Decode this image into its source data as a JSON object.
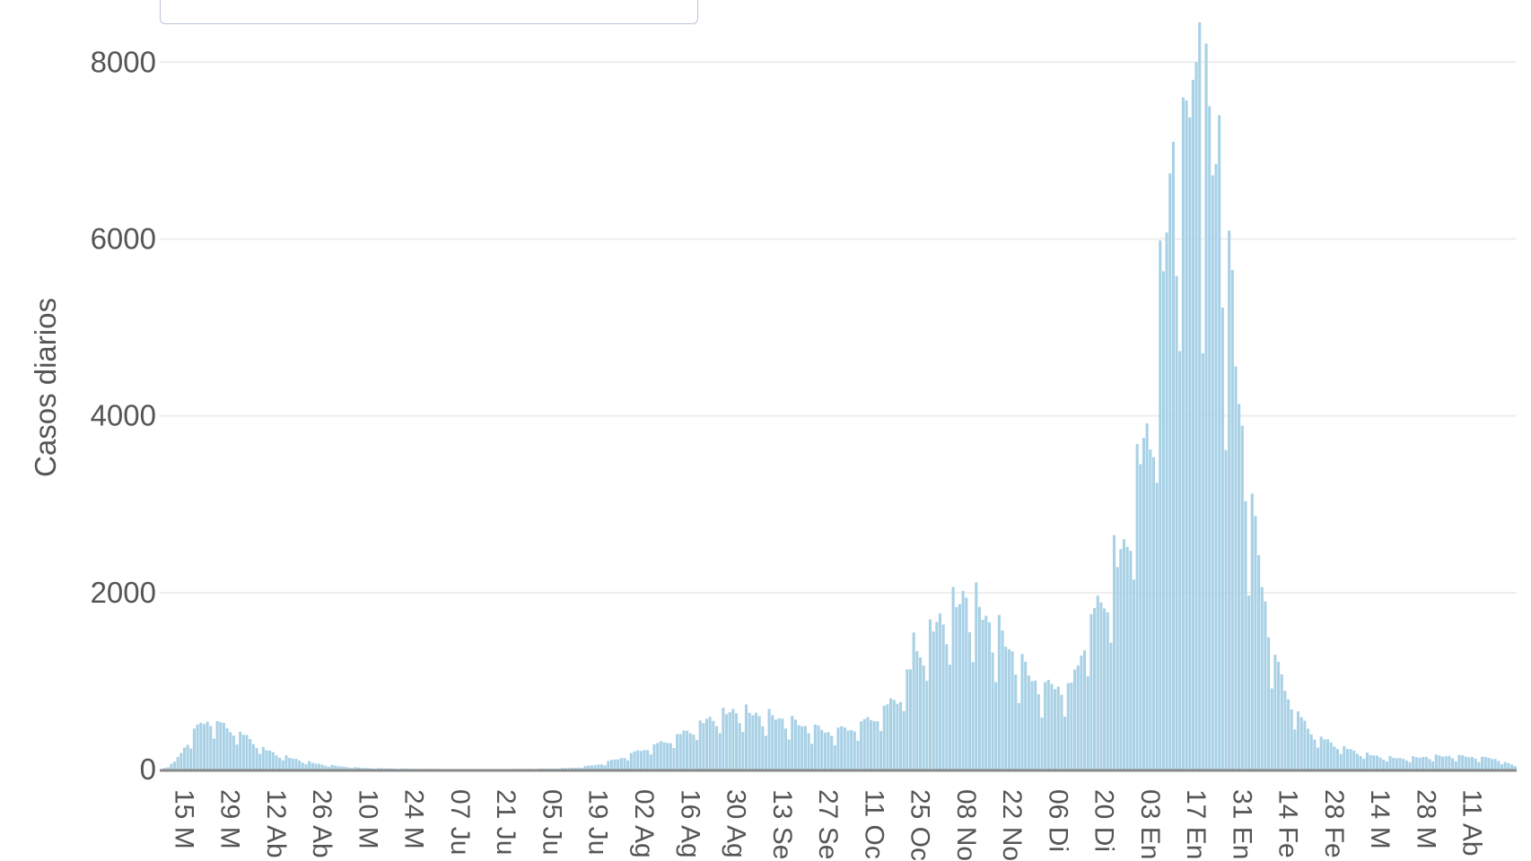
{
  "chart_data": {
    "type": "bar",
    "title": "",
    "ylabel": "Casos diarios",
    "xlabel": "",
    "ylim": [
      0,
      8500
    ],
    "yticks": [
      0,
      2000,
      4000,
      6000,
      8000
    ],
    "bar_color": "#a8d1e6",
    "grid": true,
    "x_start": "2020-03-08",
    "x_end": "2021-04-24",
    "x_tick_labels": [
      {
        "date": "2020-03-15",
        "label": "15 M"
      },
      {
        "date": "2020-03-29",
        "label": "29 M"
      },
      {
        "date": "2020-04-12",
        "label": "12 Ab"
      },
      {
        "date": "2020-04-26",
        "label": "26 Ab"
      },
      {
        "date": "2020-05-10",
        "label": "10 M"
      },
      {
        "date": "2020-05-24",
        "label": "24 M"
      },
      {
        "date": "2020-06-07",
        "label": "07 Ju"
      },
      {
        "date": "2020-06-21",
        "label": "21 Ju"
      },
      {
        "date": "2020-07-05",
        "label": "05 Ju"
      },
      {
        "date": "2020-07-19",
        "label": "19 Ju"
      },
      {
        "date": "2020-08-02",
        "label": "02 Ag"
      },
      {
        "date": "2020-08-16",
        "label": "16 Ag"
      },
      {
        "date": "2020-08-30",
        "label": "30 Ag"
      },
      {
        "date": "2020-09-13",
        "label": "13 Se"
      },
      {
        "date": "2020-09-27",
        "label": "27 Se"
      },
      {
        "date": "2020-10-11",
        "label": "11 Oc"
      },
      {
        "date": "2020-10-25",
        "label": "25 Oc"
      },
      {
        "date": "2020-11-08",
        "label": "08 No"
      },
      {
        "date": "2020-11-22",
        "label": "22 No"
      },
      {
        "date": "2020-12-06",
        "label": "06 Di"
      },
      {
        "date": "2020-12-20",
        "label": "20 Di"
      },
      {
        "date": "2021-01-03",
        "label": "03 En"
      },
      {
        "date": "2021-01-17",
        "label": "17 En"
      },
      {
        "date": "2021-01-31",
        "label": "31 En"
      },
      {
        "date": "2021-02-14",
        "label": "14 Fe"
      },
      {
        "date": "2021-02-28",
        "label": "28 Fe"
      },
      {
        "date": "2021-03-14",
        "label": "14 M"
      },
      {
        "date": "2021-03-28",
        "label": "28 M"
      },
      {
        "date": "2021-04-11",
        "label": "11 Ab"
      }
    ],
    "series_points": [
      [
        "2020-03-08",
        0
      ],
      [
        "2020-03-12",
        80
      ],
      [
        "2020-03-15",
        250
      ],
      [
        "2020-03-18",
        430
      ],
      [
        "2020-03-22",
        560
      ],
      [
        "2020-03-26",
        500
      ],
      [
        "2020-03-29",
        450
      ],
      [
        "2020-04-03",
        360
      ],
      [
        "2020-04-08",
        230
      ],
      [
        "2020-04-12",
        170
      ],
      [
        "2020-04-17",
        120
      ],
      [
        "2020-04-22",
        80
      ],
      [
        "2020-04-26",
        55
      ],
      [
        "2020-05-03",
        30
      ],
      [
        "2020-05-10",
        15
      ],
      [
        "2020-05-24",
        8
      ],
      [
        "2020-06-07",
        5
      ],
      [
        "2020-06-21",
        5
      ],
      [
        "2020-07-05",
        10
      ],
      [
        "2020-07-12",
        20
      ],
      [
        "2020-07-19",
        55
      ],
      [
        "2020-07-26",
        130
      ],
      [
        "2020-08-02",
        230
      ],
      [
        "2020-08-09",
        320
      ],
      [
        "2020-08-16",
        440
      ],
      [
        "2020-08-23",
        580
      ],
      [
        "2020-08-30",
        650
      ],
      [
        "2020-09-06",
        600
      ],
      [
        "2020-09-13",
        560
      ],
      [
        "2020-09-20",
        480
      ],
      [
        "2020-09-27",
        420
      ],
      [
        "2020-10-04",
        460
      ],
      [
        "2020-10-11",
        580
      ],
      [
        "2020-10-18",
        800
      ],
      [
        "2020-10-25",
        1350
      ],
      [
        "2020-11-01",
        1700
      ],
      [
        "2020-11-05",
        1800
      ],
      [
        "2020-11-08",
        1950
      ],
      [
        "2020-11-12",
        1750
      ],
      [
        "2020-11-17",
        1550
      ],
      [
        "2020-11-22",
        1300
      ],
      [
        "2020-11-27",
        1050
      ],
      [
        "2020-12-02",
        900
      ],
      [
        "2020-12-06",
        950
      ],
      [
        "2020-12-10",
        900
      ],
      [
        "2020-12-14",
        1500
      ],
      [
        "2020-12-20",
        1950
      ],
      [
        "2020-12-25",
        2300
      ],
      [
        "2020-12-30",
        3300
      ],
      [
        "2021-01-03",
        3800
      ],
      [
        "2021-01-06",
        5200
      ],
      [
        "2021-01-09",
        6300
      ],
      [
        "2021-01-12",
        7100
      ],
      [
        "2021-01-15",
        7400
      ],
      [
        "2021-01-17",
        7900
      ],
      [
        "2021-01-20",
        7000
      ],
      [
        "2021-01-24",
        6600
      ],
      [
        "2021-01-27",
        5300
      ],
      [
        "2021-01-31",
        3800
      ],
      [
        "2021-02-03",
        2800
      ],
      [
        "2021-02-07",
        1900
      ],
      [
        "2021-02-10",
        1200
      ],
      [
        "2021-02-14",
        820
      ],
      [
        "2021-02-18",
        550
      ],
      [
        "2021-02-22",
        380
      ],
      [
        "2021-02-28",
        280
      ],
      [
        "2021-03-07",
        190
      ],
      [
        "2021-03-14",
        140
      ],
      [
        "2021-03-21",
        120
      ],
      [
        "2021-03-28",
        140
      ],
      [
        "2021-04-04",
        150
      ],
      [
        "2021-04-11",
        140
      ],
      [
        "2021-04-18",
        120
      ],
      [
        "2021-04-24",
        40
      ]
    ],
    "spike_points": [
      [
        "2021-01-18",
        8450
      ],
      [
        "2021-01-16",
        7800
      ],
      [
        "2021-01-13",
        7600
      ],
      [
        "2021-01-21",
        7500
      ],
      [
        "2021-01-24",
        7400
      ],
      [
        "2021-01-10",
        7100
      ],
      [
        "2021-01-28",
        5650
      ],
      [
        "2021-01-01",
        3750
      ],
      [
        "2020-12-23",
        2650
      ],
      [
        "2020-11-07",
        2020
      ],
      [
        "2020-10-23",
        1550
      ]
    ]
  }
}
